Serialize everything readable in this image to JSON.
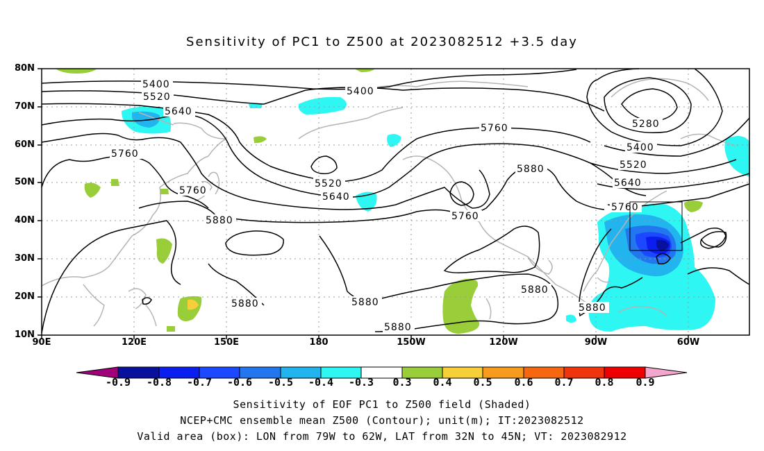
{
  "title": "Sensitivity of PC1 to Z500 at 2023082512 +3.5 day",
  "map": {
    "lat_labels": [
      "80N",
      "70N",
      "60N",
      "50N",
      "40N",
      "30N",
      "20N",
      "10N"
    ],
    "lon_labels": [
      "90E",
      "120E",
      "150E",
      "180",
      "150W",
      "120W",
      "90W",
      "60W"
    ],
    "contour_labels": [
      "5400",
      "5520",
      "5640",
      "5760",
      "5400",
      "5280",
      "5760",
      "5880",
      "5400",
      "5520",
      "5640",
      "5760",
      "5520",
      "5640",
      "5760",
      "5880",
      "5760",
      "5880",
      "5880",
      "5880",
      "5880",
      "5880"
    ],
    "valid_box": {
      "lon_from": "79W",
      "lon_to": "62W",
      "lat_from": "32N",
      "lat_to": "45N"
    }
  },
  "colorbar": {
    "labels": [
      "-0.9",
      "-0.8",
      "-0.7",
      "-0.6",
      "-0.5",
      "-0.4",
      "-0.3",
      "0.3",
      "0.4",
      "0.5",
      "0.6",
      "0.7",
      "0.8",
      "0.9"
    ],
    "colors": [
      "#a0007a",
      "#08119e",
      "#0a1ef0",
      "#1c49ff",
      "#2277ee",
      "#22b4ee",
      "#2ef6f3",
      "#ffffff",
      "#9acd3a",
      "#f7cf38",
      "#f69b1d",
      "#f6670f",
      "#f0340c",
      "#ef0000",
      "#f4a6ce"
    ]
  },
  "footer": {
    "line1": "Sensitivity of EOF PC1 to Z500 field (Shaded)",
    "line2": "NCEP+CMC ensemble mean Z500 (Contour); unit(m); IT:2023082512",
    "line3": "Valid area (box): LON from 79W to 62W, LAT from 32N to 45N; VT: 2023082912"
  }
}
